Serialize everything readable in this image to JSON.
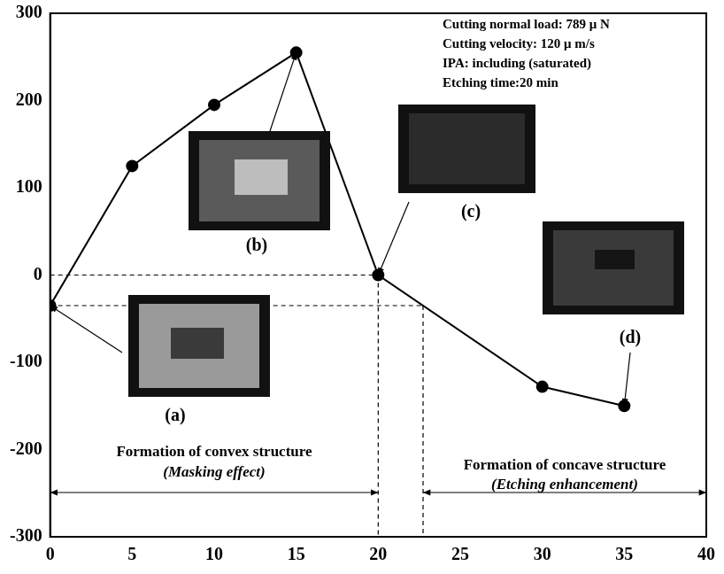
{
  "chart_data": {
    "type": "line",
    "x": [
      0,
      5,
      10,
      15,
      20,
      30,
      35
    ],
    "values": [
      -35,
      125,
      195,
      255,
      0,
      -128,
      -150
    ],
    "point_labels": [
      "(a)",
      null,
      null,
      "(b)",
      "(c)",
      null,
      "(d)"
    ],
    "color": "#000000",
    "marker": "circle",
    "line_style": "solid",
    "xlim": [
      0,
      40
    ],
    "xticks": [
      0,
      5,
      10,
      15,
      20,
      25,
      30,
      35,
      40
    ],
    "ylim": [
      -300,
      300
    ],
    "yticks": [
      -300,
      -200,
      -100,
      0,
      100,
      200,
      300
    ],
    "grid": false,
    "conditions": [
      "Cutting normal load: 789 μ N",
      "Cutting velocity: 120 μ m/s",
      "IPA: including (saturated)",
      "Etching time:20 min"
    ],
    "regions": [
      {
        "text": "Formation of convex structure",
        "note": "(Masking effect)"
      },
      {
        "text": "Formation of concave structure",
        "note": "(Etching enhancement)"
      }
    ]
  }
}
